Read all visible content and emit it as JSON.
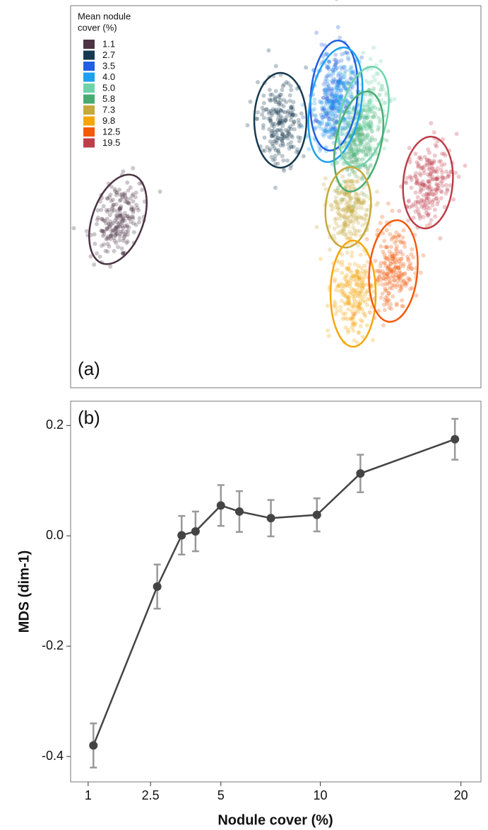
{
  "chart_data": [
    {
      "type": "scatter",
      "panel_label": "(a)",
      "legend_title_lines": [
        "Mean nodule",
        "cover (%)"
      ],
      "xlim": [
        0,
        5.81
      ],
      "ylim": [
        0,
        5.4
      ],
      "series": [
        {
          "name": "1.1",
          "color": "#4b3444",
          "center": [
            0.67,
            2.38
          ],
          "radii": [
            0.36,
            0.66
          ],
          "angle": 20
        },
        {
          "name": "2.7",
          "color": "#17394f",
          "center": [
            2.97,
            3.78
          ],
          "radii": [
            0.37,
            0.67
          ],
          "angle": 0
        },
        {
          "name": "3.5",
          "color": "#1f5fe0",
          "center": [
            3.73,
            4.13
          ],
          "radii": [
            0.33,
            0.78
          ],
          "angle": 5
        },
        {
          "name": "4.0",
          "color": "#1fa0ee",
          "center": [
            3.75,
            4.0
          ],
          "radii": [
            0.36,
            0.82
          ],
          "angle": 10
        },
        {
          "name": "5.0",
          "color": "#6fd3aa",
          "center": [
            4.15,
            3.83
          ],
          "radii": [
            0.33,
            0.72
          ],
          "angle": 12
        },
        {
          "name": "5.8",
          "color": "#4aab72",
          "center": [
            4.08,
            3.48
          ],
          "radii": [
            0.32,
            0.72
          ],
          "angle": 12
        },
        {
          "name": "7.3",
          "color": "#c5a93c",
          "center": [
            3.93,
            2.55
          ],
          "radii": [
            0.32,
            0.57
          ],
          "angle": 5
        },
        {
          "name": "9.8",
          "color": "#f5a60a",
          "center": [
            4.0,
            1.33
          ],
          "radii": [
            0.32,
            0.75
          ],
          "angle": 0
        },
        {
          "name": "12.5",
          "color": "#f25a0c",
          "center": [
            4.57,
            1.65
          ],
          "radii": [
            0.34,
            0.72
          ],
          "angle": 5
        },
        {
          "name": "19.5",
          "color": "#bd3e4a",
          "center": [
            5.06,
            2.9
          ],
          "radii": [
            0.35,
            0.65
          ],
          "angle": 5
        }
      ]
    },
    {
      "type": "line",
      "panel_label": "(b)",
      "x_label": "Nodule cover (%)",
      "y_label": "MDS (dim-1)",
      "xscale": "sqrt",
      "xlim": [
        0.7,
        21.7
      ],
      "ylim": [
        -0.446,
        0.244
      ],
      "xticks": [
        1,
        2.5,
        5,
        10,
        20
      ],
      "yticks": [
        -0.4,
        -0.2,
        {
          "value": 0,
          "label": "0.0"
        },
        0.2
      ],
      "color": "#444444",
      "error_color": "#999999",
      "x": [
        1.1,
        2.7,
        3.5,
        4.0,
        5.0,
        5.8,
        7.3,
        9.8,
        12.5,
        19.5
      ],
      "values": [
        -0.38,
        -0.092,
        0.001,
        0.008,
        0.055,
        0.044,
        0.032,
        0.038,
        0.113,
        0.175
      ],
      "errors": [
        0.04,
        0.04,
        0.035,
        0.036,
        0.037,
        0.037,
        0.033,
        0.03,
        0.034,
        0.037
      ]
    }
  ]
}
